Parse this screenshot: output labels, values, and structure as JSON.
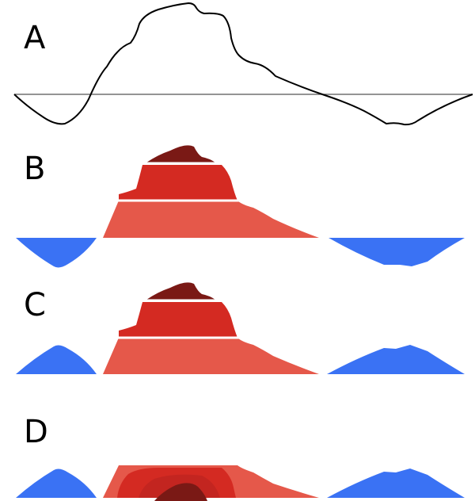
{
  "panels": {
    "a": {
      "label": "A"
    },
    "b": {
      "label": "B"
    },
    "c": {
      "label": "C"
    },
    "d": {
      "label": "D"
    }
  },
  "colors": {
    "curve": "#000000",
    "baseline": "#555555",
    "red_light": "#e5584a",
    "red_mid": "#d42a22",
    "red_dark": "#7a1915",
    "blue": "#3a72f4",
    "separator": "#ffffff"
  }
}
